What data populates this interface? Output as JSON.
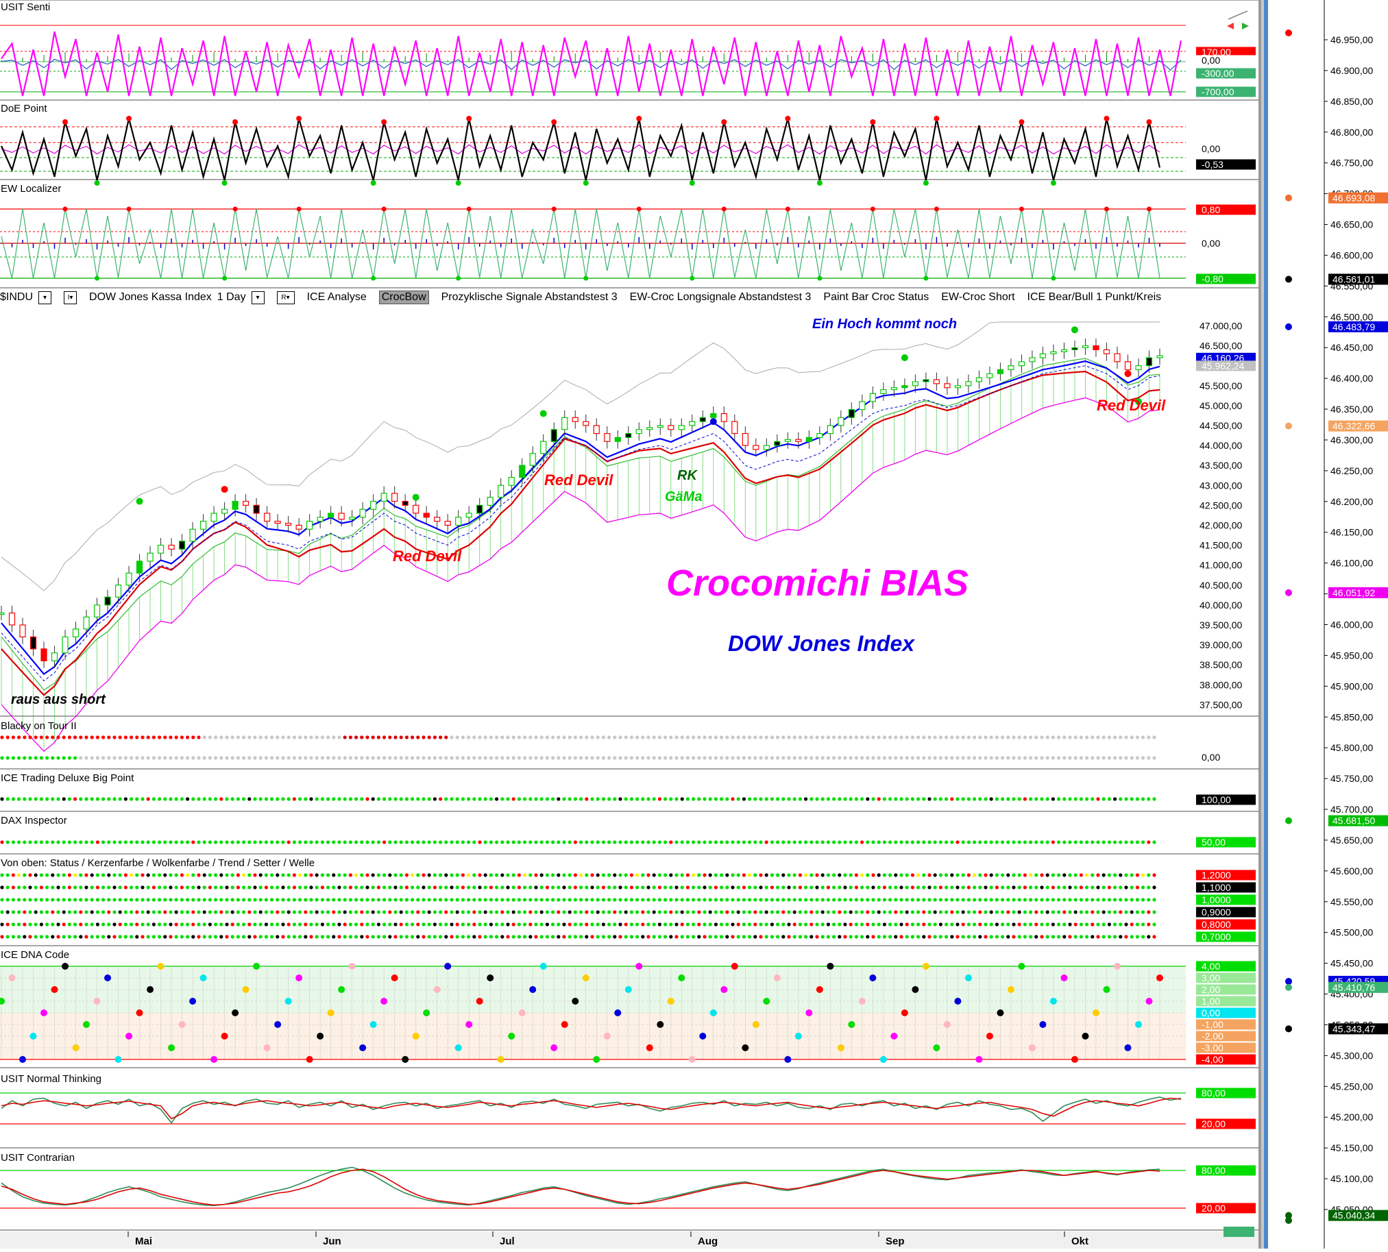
{
  "panes": {
    "usit_senti": {
      "title": "USIT Senti",
      "tags": [
        {
          "text": "170,00",
          "bg": "#ff0000",
          "fg": "#fff"
        },
        {
          "text": "0,00",
          "bg": "#ffffff",
          "fg": "#000"
        },
        {
          "text": "-300,00",
          "bg": "#3cb371",
          "fg": "#fff"
        },
        {
          "text": "-700,00",
          "bg": "#3cb371",
          "fg": "#fff"
        }
      ]
    },
    "doe_point": {
      "title": "DoE Point",
      "tags": [
        {
          "text": "0,00",
          "bg": "#ffffff",
          "fg": "#000"
        },
        {
          "text": "-0,53",
          "bg": "#000000",
          "fg": "#fff"
        }
      ]
    },
    "ew_localizer": {
      "title": "EW Localizer",
      "tags": [
        {
          "text": "0,80",
          "bg": "#ff0000",
          "fg": "#fff"
        },
        {
          "text": "0,00",
          "bg": "#ffffff",
          "fg": "#000"
        },
        {
          "text": "-0,80",
          "bg": "#00cc00",
          "fg": "#fff"
        }
      ]
    },
    "blacky": {
      "title": "Blacky on Tour II",
      "tags": [
        {
          "text": "0,00",
          "bg": "#ffffff",
          "fg": "#000"
        }
      ]
    },
    "ice_trading": {
      "title": "ICE Trading Deluxe Big Point",
      "tags": [
        {
          "text": "100,00",
          "bg": "#000000",
          "fg": "#fff"
        }
      ]
    },
    "dax_inspector": {
      "title": "DAX Inspector",
      "tags": [
        {
          "text": "50,00",
          "bg": "#00dd00",
          "fg": "#fff"
        }
      ]
    },
    "von_oben": {
      "title": "Von oben: Status / Kerzenfarbe / Wolkenfarbe / Trend / Setter / Welle",
      "tags": [
        {
          "text": "1,2000",
          "bg": "#ff0000",
          "fg": "#fff"
        },
        {
          "text": "1,1000",
          "bg": "#000000",
          "fg": "#fff"
        },
        {
          "text": "1,0000",
          "bg": "#00dd00",
          "fg": "#fff"
        },
        {
          "text": "0,9000",
          "bg": "#000000",
          "fg": "#fff"
        },
        {
          "text": "0,8000",
          "bg": "#ff0000",
          "fg": "#fff"
        },
        {
          "text": "0,7000",
          "bg": "#00dd00",
          "fg": "#fff"
        }
      ]
    },
    "ice_dna": {
      "title": "ICE DNA Code",
      "tags": [
        {
          "text": "4,00",
          "bg": "#00dd00",
          "fg": "#fff"
        },
        {
          "text": "3,00",
          "bg": "#98e898",
          "fg": "#fff"
        },
        {
          "text": "2,00",
          "bg": "#98e898",
          "fg": "#fff"
        },
        {
          "text": "1,00",
          "bg": "#98e898",
          "fg": "#fff"
        },
        {
          "text": "0,00",
          "bg": "#00e5ee",
          "fg": "#fff"
        },
        {
          "text": "-1,00",
          "bg": "#f4a460",
          "fg": "#fff"
        },
        {
          "text": "-2,00",
          "bg": "#f4a460",
          "fg": "#fff"
        },
        {
          "text": "-3,00",
          "bg": "#f4a460",
          "fg": "#fff"
        },
        {
          "text": "-4,00",
          "bg": "#ff0000",
          "fg": "#fff"
        }
      ]
    },
    "usit_normal": {
      "title": "USIT Normal Thinking",
      "tags": [
        {
          "text": "80,00",
          "bg": "#00dd00",
          "fg": "#fff"
        },
        {
          "text": "20,00",
          "bg": "#ff0000",
          "fg": "#fff"
        }
      ]
    },
    "usit_contrarian": {
      "title": "USIT Contrarian",
      "tags": [
        {
          "text": "80,00",
          "bg": "#00dd00",
          "fg": "#fff"
        },
        {
          "text": "20,00",
          "bg": "#ff0000",
          "fg": "#fff"
        }
      ]
    }
  },
  "toolbar": {
    "symbol": "$INDU",
    "name": "DOW Jones Kassa Index",
    "interval": "1 Day",
    "r_button": "R",
    "items": [
      "ICE Analyse",
      "CrocBow",
      "Prozyklische Signale Abstandstest 3",
      "EW-Croc Longsignale Abstandstest 3",
      "Paint Bar Croc Status",
      "EW-Croc Short",
      "ICE Bear/Bull 1 Punkt/Kreis"
    ],
    "selected_item": "CrocBow"
  },
  "annotations": {
    "title": "Crocomichi BIAS",
    "subtitle": "DOW Jones Index",
    "ein_hoch": "Ein Hoch kommt noch",
    "red_devil": "Red Devil",
    "rk": "RK",
    "gama": "GäMa",
    "raus": "raus aus short"
  },
  "colors": {
    "senti": "#ff00ff",
    "candle_up": "#00cc00",
    "candle_down": "#ff0000",
    "kijun": "#0000ff",
    "tenkan": "#dd0000",
    "cloud_edge": "#ee00ee",
    "cloud_fill": "#00bb00",
    "title_magenta": "#ff00ff",
    "subtitle_blue": "#0000dd"
  },
  "chart_data": {
    "type": "candlestick",
    "x_ticks": [
      "Mai",
      "Jun",
      "Jul",
      "Aug",
      "Sep",
      "Okt"
    ],
    "main_y_ticks": [
      "47.000,00",
      "46.500,00",
      "46.000,00",
      "45.500,00",
      "45.000,00",
      "44.500,00",
      "44.000,00",
      "43.500,00",
      "43.000,00",
      "42.500,00",
      "42.000,00",
      "41.500,00",
      "41.000,00",
      "40.500,00",
      "40.000,00",
      "39.500,00",
      "39.000,00",
      "38.500,00",
      "38.000,00",
      "37.500,00"
    ],
    "main_price_tags": [
      {
        "text": "46.160,26",
        "bg": "#0000dd",
        "fg": "#fff",
        "value": 46160
      },
      {
        "text": "45.962,24",
        "bg": "#c0c0c0",
        "fg": "#fff",
        "value": 45962
      }
    ],
    "right_axis_ticks": [
      "46.950,00",
      "46.900,00",
      "46.850,00",
      "46.800,00",
      "46.750,00",
      "46.700,00",
      "46.650,00",
      "46.600,00",
      "46.550,00",
      "46.500,00",
      "46.450,00",
      "46.400,00",
      "46.350,00",
      "46.300,00",
      "46.250,00",
      "46.200,00",
      "46.150,00",
      "46.100,00",
      "46.050,00",
      "46.000,00",
      "45.950,00",
      "45.900,00",
      "45.850,00",
      "45.800,00",
      "45.750,00",
      "45.700,00",
      "45.650,00",
      "45.600,00",
      "45.550,00",
      "45.500,00",
      "45.450,00",
      "45.400,00",
      "45.350,00",
      "45.300,00",
      "45.250,00",
      "45.200,00",
      "45.150,00",
      "45.100,00",
      "45.050,00"
    ],
    "right_axis_tags": [
      {
        "text": "46.693,08",
        "bg": "#f07030",
        "value": 46693.08
      },
      {
        "text": "46.561,01",
        "bg": "#000000",
        "value": 46561.01
      },
      {
        "text": "46.483,79",
        "bg": "#0000dd",
        "value": 46483.79
      },
      {
        "text": "46.322,66",
        "bg": "#f4a460",
        "value": 46322.66
      },
      {
        "text": "46.051,92",
        "bg": "#ee00ee",
        "value": 46051.92
      },
      {
        "text": "45.681,50",
        "bg": "#00bb00",
        "value": 45681.5
      },
      {
        "text": "45.420,59",
        "bg": "#0000dd",
        "value": 45420.59
      },
      {
        "text": "45.410,76",
        "bg": "#3cb371",
        "value": 45410.76
      },
      {
        "text": "45.343,47",
        "bg": "#000000",
        "value": 45343.47
      },
      {
        "text": "45.040,34",
        "bg": "#006400",
        "value": 45040.34
      }
    ],
    "right_axis_range": [
      45000,
      46980
    ],
    "main_y_range": [
      37300,
      47300
    ],
    "closes": [
      39800,
      39500,
      39200,
      38900,
      38600,
      38800,
      39200,
      39400,
      39700,
      40000,
      40200,
      40500,
      40800,
      41100,
      41300,
      41500,
      41400,
      41600,
      41900,
      42100,
      42300,
      42400,
      42600,
      42500,
      42300,
      42100,
      42050,
      42000,
      41900,
      42100,
      42200,
      42300,
      42150,
      42200,
      42400,
      42600,
      42800,
      42600,
      42500,
      42300,
      42200,
      42100,
      42000,
      42200,
      42300,
      42500,
      42700,
      43000,
      43200,
      43500,
      43800,
      44100,
      44400,
      44700,
      44600,
      44500,
      44300,
      44100,
      44200,
      44300,
      44400,
      44450,
      44500,
      44400,
      44500,
      44600,
      44700,
      44800,
      44600,
      44300,
      44000,
      43900,
      44000,
      44100,
      44150,
      44100,
      44200,
      44300,
      44500,
      44700,
      44900,
      45100,
      45300,
      45400,
      45450,
      45500,
      45600,
      45650,
      45550,
      45450,
      45500,
      45600,
      45700,
      45800,
      45900,
      46000,
      46100,
      46200,
      46300,
      46350,
      46400,
      46450,
      46500,
      46400,
      46300,
      46100,
      45900,
      46000,
      46200,
      46250
    ],
    "senti": [
      20,
      120,
      -300,
      80,
      -500,
      200,
      -100,
      150,
      -600,
      60,
      -200,
      180,
      -400,
      100,
      -250,
      160,
      -650,
      90,
      -150,
      140,
      -300,
      170,
      -500,
      70,
      -200,
      130,
      -450,
      110,
      -100,
      150,
      -600,
      80,
      -300,
      160,
      -350,
      120,
      -550,
      100,
      -150,
      140,
      -400,
      90,
      -250,
      170,
      -500,
      60,
      -200,
      150,
      -650,
      130,
      -300,
      110,
      -450,
      160,
      -100,
      140,
      -600,
      90,
      -350,
      170,
      -200,
      120,
      -500,
      80,
      -250,
      150,
      -550,
      100,
      -150,
      160,
      -400,
      130,
      -300,
      70,
      -600,
      140,
      -200,
      110,
      -450,
      170,
      -100,
      90,
      -350,
      150,
      -650,
      120,
      -250,
      160,
      -500,
      80,
      -300,
      140,
      -550,
      100,
      -200,
      170,
      -400,
      110,
      -150,
      130,
      -600,
      90,
      -350,
      150,
      -250,
      120,
      -500,
      160,
      -300,
      80,
      -700,
      140
    ],
    "doe": [
      0.1,
      -0.6,
      0.5,
      -0.7,
      0.3,
      -0.8,
      0.8,
      -0.2,
      0.6,
      -0.9,
      0.4,
      -0.5,
      0.9,
      -0.3,
      0.2,
      -0.7,
      0.7,
      -0.6,
      0.5,
      -0.8,
      0.3,
      -0.9,
      0.8,
      -0.4,
      0.6,
      -0.5,
      0.1,
      -0.8,
      0.9,
      -0.2,
      0.4,
      -0.7,
      0.7,
      -0.6,
      0.2,
      -0.9,
      0.8,
      -0.3,
      0.5,
      -0.8,
      0.6,
      -0.4,
      0.3,
      -0.9,
      0.9,
      -0.5,
      0.4,
      -0.6,
      0.7,
      -0.8,
      0.2,
      -0.3,
      0.8,
      -0.7,
      0.5,
      -0.9,
      0.6,
      -0.4,
      0.3,
      -0.6,
      0.9,
      -0.8,
      0.4,
      -0.2,
      0.7,
      -0.9,
      0.5,
      -0.7,
      0.8,
      -0.5,
      0.2,
      -0.8,
      0.6,
      -0.3,
      0.9,
      -0.6,
      0.4,
      -0.9,
      0.7,
      -0.4,
      0.3,
      -0.7,
      0.8,
      -0.8,
      0.5,
      -0.2,
      0.6,
      -0.9,
      0.9,
      -0.5,
      0.2,
      -0.6,
      0.7,
      -0.8,
      0.4,
      -0.3,
      0.8,
      -0.7,
      0.5,
      -0.9,
      0.3,
      -0.4,
      0.6,
      -0.8,
      0.9,
      -0.5,
      0.4,
      -0.6,
      0.8,
      -0.53
    ],
    "normal_red": [
      55,
      60,
      58,
      62,
      65,
      63,
      60,
      58,
      55,
      57,
      60,
      62,
      64,
      61,
      58,
      55,
      30,
      40,
      55,
      60,
      62,
      58,
      56,
      60,
      63,
      65,
      62,
      60,
      58,
      55,
      57,
      60,
      62,
      58,
      55,
      52,
      50,
      55,
      58,
      60,
      57,
      54,
      52,
      55,
      58,
      62,
      60,
      57,
      55,
      58,
      60,
      63,
      65,
      62,
      58,
      55,
      52,
      55,
      58,
      60,
      57,
      54,
      50,
      48,
      52,
      55,
      58,
      60,
      62,
      60,
      57,
      55,
      58,
      60,
      62,
      58,
      55,
      52,
      50,
      53,
      55,
      58,
      60,
      62,
      60,
      57,
      55,
      52,
      50,
      53,
      55,
      58,
      60,
      62,
      58,
      55,
      52,
      48,
      40,
      35,
      45,
      55,
      62,
      65,
      63,
      60,
      58,
      55,
      60,
      66,
      70,
      68
    ],
    "normal_green": [
      50,
      65,
      55,
      68,
      70,
      60,
      55,
      62,
      50,
      60,
      65,
      58,
      68,
      55,
      60,
      48,
      22,
      50,
      60,
      65,
      58,
      62,
      55,
      64,
      68,
      60,
      58,
      65,
      52,
      58,
      62,
      55,
      65,
      52,
      58,
      48,
      55,
      60,
      62,
      55,
      60,
      50,
      55,
      58,
      62,
      65,
      55,
      60,
      52,
      62,
      64,
      60,
      68,
      58,
      55,
      50,
      58,
      60,
      62,
      55,
      58,
      50,
      45,
      52,
      55,
      60,
      62,
      58,
      65,
      55,
      60,
      58,
      62,
      55,
      60,
      52,
      50,
      55,
      48,
      58,
      60,
      55,
      62,
      65,
      55,
      60,
      50,
      55,
      48,
      58,
      62,
      55,
      65,
      58,
      55,
      48,
      50,
      42,
      25,
      40,
      55,
      62,
      68,
      60,
      65,
      58,
      55,
      62,
      68,
      72,
      66,
      70
    ],
    "contra_red": [
      55,
      50,
      42,
      35,
      30,
      28,
      26,
      28,
      30,
      34,
      40,
      46,
      50,
      52,
      48,
      42,
      38,
      34,
      30,
      27,
      25,
      26,
      28,
      32,
      36,
      40,
      44,
      46,
      50,
      55,
      62,
      70,
      76,
      80,
      82,
      78,
      70,
      60,
      50,
      42,
      36,
      32,
      30,
      28,
      26,
      27,
      30,
      34,
      38,
      42,
      46,
      50,
      52,
      50,
      46,
      42,
      38,
      34,
      30,
      28,
      27,
      29,
      32,
      36,
      40,
      44,
      48,
      52,
      55,
      58,
      60,
      58,
      55,
      52,
      50,
      52,
      55,
      58,
      62,
      66,
      70,
      74,
      78,
      80,
      78,
      75,
      72,
      70,
      68,
      66,
      68,
      70,
      72,
      74,
      76,
      78,
      80,
      80,
      78,
      75,
      72,
      74,
      76,
      78,
      76,
      74,
      76,
      78,
      80,
      79
    ],
    "contra_green": [
      60,
      48,
      38,
      32,
      28,
      26,
      25,
      27,
      32,
      38,
      45,
      50,
      54,
      50,
      45,
      38,
      34,
      30,
      27,
      25,
      24,
      26,
      30,
      35,
      40,
      45,
      48,
      52,
      58,
      65,
      72,
      78,
      82,
      85,
      80,
      72,
      62,
      52,
      44,
      38,
      33,
      30,
      28,
      26,
      25,
      28,
      32,
      36,
      40,
      45,
      48,
      52,
      54,
      50,
      45,
      40,
      36,
      32,
      28,
      26,
      28,
      31,
      35,
      38,
      42,
      46,
      50,
      54,
      57,
      60,
      62,
      58,
      54,
      50,
      48,
      51,
      56,
      60,
      64,
      68,
      72,
      76,
      80,
      82,
      78,
      74,
      71,
      68,
      66,
      65,
      68,
      72,
      74,
      76,
      77,
      79,
      81,
      78,
      76,
      73,
      72,
      75,
      77,
      79,
      75,
      73,
      77,
      79,
      81,
      82
    ]
  }
}
